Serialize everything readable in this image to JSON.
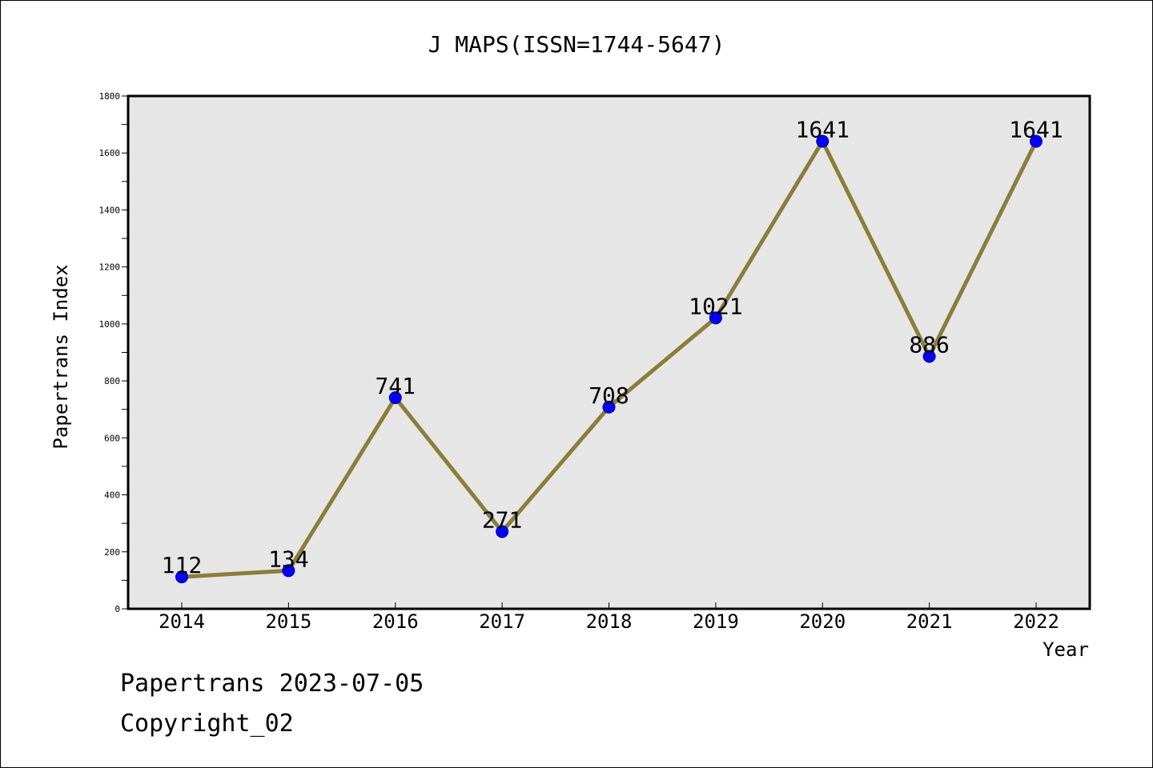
{
  "chart_data": {
    "type": "line",
    "title": "J MAPS(ISSN=1744-5647)",
    "xlabel": "Year",
    "ylabel": "Papertrans Index",
    "categories": [
      "2014",
      "2015",
      "2016",
      "2017",
      "2018",
      "2019",
      "2020",
      "2021",
      "2022"
    ],
    "series": [
      {
        "values": [
          112,
          134,
          741,
          271,
          708,
          1021,
          1641,
          886,
          1641
        ]
      }
    ],
    "data_labels": [
      "112",
      "134",
      "741",
      "271",
      "708",
      "1021",
      "1641",
      "886",
      "1641"
    ],
    "ylim": [
      0,
      1800
    ],
    "y_ticks": [
      0,
      200,
      400,
      600,
      800,
      1000,
      1200,
      1400,
      1600,
      1800
    ],
    "y_tick_labels": [
      "0",
      "200",
      "400",
      "600",
      "800",
      "1000",
      "1200",
      "1400",
      "1600",
      "1800"
    ],
    "grid": false,
    "legend": "none",
    "colors": {
      "line": "#8B7D3A",
      "marker": "#0000FF",
      "plot_background": "#E6E6E6",
      "page_background": "#FFFFFF"
    }
  },
  "footer": {
    "line1": "Papertrans 2023-07-05",
    "line2": "Copyright_02"
  }
}
